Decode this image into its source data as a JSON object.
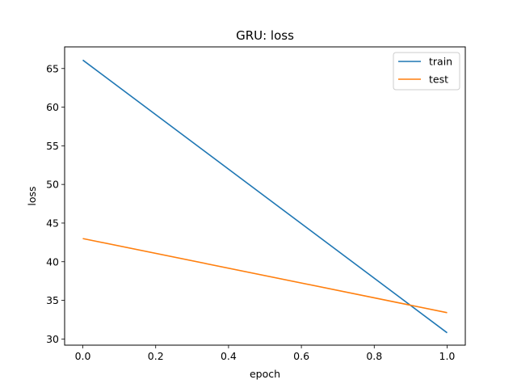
{
  "chart_data": {
    "type": "line",
    "title": "GRU: loss",
    "xlabel": "epoch",
    "ylabel": "loss",
    "xlim": [
      -0.05,
      1.05
    ],
    "ylim": [
      29.2,
      67.8
    ],
    "xticks": [
      0.0,
      0.2,
      0.4,
      0.6,
      0.8,
      1.0
    ],
    "xtick_labels": [
      "0.0",
      "0.2",
      "0.4",
      "0.6",
      "0.8",
      "1.0"
    ],
    "yticks": [
      30,
      35,
      40,
      45,
      50,
      55,
      60,
      65
    ],
    "ytick_labels": [
      "30",
      "35",
      "40",
      "45",
      "50",
      "55",
      "60",
      "65"
    ],
    "grid": false,
    "legend_position": "top-right",
    "series": [
      {
        "name": "train",
        "color": "#1f77b4",
        "x": [
          0,
          1
        ],
        "y": [
          66.1,
          30.8
        ]
      },
      {
        "name": "test",
        "color": "#ff7f0e",
        "x": [
          0,
          1
        ],
        "y": [
          43.0,
          33.4
        ]
      }
    ]
  }
}
